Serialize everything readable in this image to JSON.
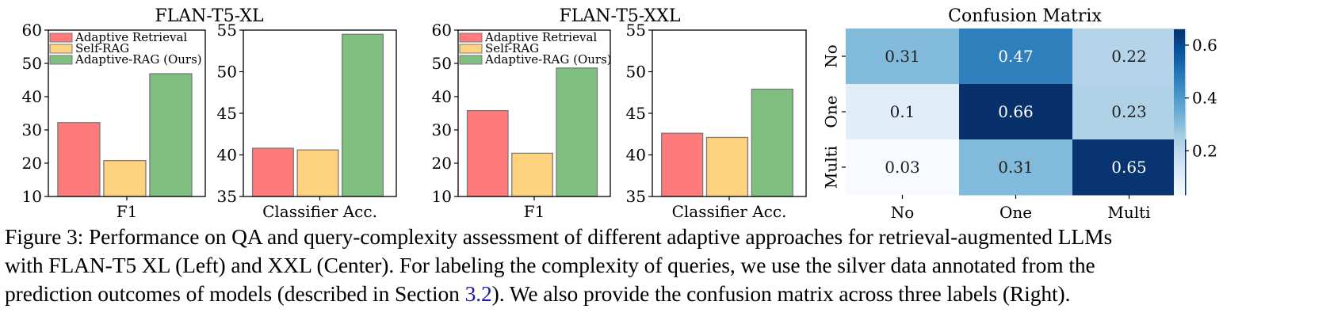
{
  "legend": [
    "Adaptive Retrieval",
    "Self-RAG",
    "Adaptive-RAG (Ours)"
  ],
  "colors": {
    "adaptive_retrieval": "#ff7b7b",
    "self_rag": "#ffd280",
    "adaptive_rag": "#7fbf7f",
    "bar_edge": "#7a7a7a"
  },
  "chart_data": [
    {
      "type": "bar",
      "title": "FLAN-T5-XL",
      "xlabel": "F1",
      "ylabel": "",
      "categories": [
        "F1"
      ],
      "ylim": [
        10,
        60
      ],
      "yticks": [
        10,
        20,
        30,
        40,
        50,
        60
      ],
      "series": [
        {
          "name": "Adaptive Retrieval",
          "values": [
            32.2
          ]
        },
        {
          "name": "Self-RAG",
          "values": [
            20.8
          ]
        },
        {
          "name": "Adaptive-RAG (Ours)",
          "values": [
            46.9
          ]
        }
      ]
    },
    {
      "type": "bar",
      "title": "FLAN-T5-XL",
      "xlabel": "Classifier Acc.",
      "ylabel": "",
      "categories": [
        "Classifier Acc."
      ],
      "ylim": [
        35,
        55
      ],
      "yticks": [
        35,
        40,
        45,
        50,
        55
      ],
      "series": [
        {
          "name": "Adaptive Retrieval",
          "values": [
            40.8
          ]
        },
        {
          "name": "Self-RAG",
          "values": [
            40.6
          ]
        },
        {
          "name": "Adaptive-RAG (Ours)",
          "values": [
            54.5
          ]
        }
      ]
    },
    {
      "type": "bar",
      "title": "FLAN-T5-XXL",
      "xlabel": "F1",
      "ylabel": "",
      "categories": [
        "F1"
      ],
      "ylim": [
        10,
        60
      ],
      "yticks": [
        10,
        20,
        30,
        40,
        50,
        60
      ],
      "series": [
        {
          "name": "Adaptive Retrieval",
          "values": [
            35.8
          ]
        },
        {
          "name": "Self-RAG",
          "values": [
            23.0
          ]
        },
        {
          "name": "Adaptive-RAG (Ours)",
          "values": [
            48.6
          ]
        }
      ]
    },
    {
      "type": "bar",
      "title": "FLAN-T5-XXL",
      "xlabel": "Classifier Acc.",
      "ylabel": "",
      "categories": [
        "Classifier Acc."
      ],
      "ylim": [
        35,
        55
      ],
      "yticks": [
        35,
        40,
        45,
        50,
        55
      ],
      "series": [
        {
          "name": "Adaptive Retrieval",
          "values": [
            42.6
          ]
        },
        {
          "name": "Self-RAG",
          "values": [
            42.1
          ]
        },
        {
          "name": "Adaptive-RAG (Ours)",
          "values": [
            47.9
          ]
        }
      ]
    },
    {
      "type": "heatmap",
      "title": "Confusion Matrix",
      "x_labels": [
        "No",
        "One",
        "Multi"
      ],
      "y_labels": [
        "No",
        "One",
        "Multi"
      ],
      "values": [
        [
          0.31,
          0.47,
          0.22
        ],
        [
          0.1,
          0.66,
          0.23
        ],
        [
          0.03,
          0.31,
          0.65
        ]
      ],
      "value_labels": [
        [
          "0.31",
          "0.47",
          "0.22"
        ],
        [
          "0.1",
          "0.66",
          "0.23"
        ],
        [
          "0.03",
          "0.31",
          "0.65"
        ]
      ],
      "colorbar": {
        "range": [
          0.03,
          0.66
        ],
        "ticks": [
          0.2,
          0.4,
          0.6
        ],
        "tick_labels": [
          "0.2",
          "0.4",
          "0.6"
        ],
        "colormap": [
          "#f7fbff",
          "#deebf7",
          "#c6dbef",
          "#9ecae1",
          "#6baed6",
          "#4292c6",
          "#2171b5",
          "#08519c",
          "#08306b"
        ]
      }
    }
  ],
  "caption": {
    "line1": "Figure 3: Performance on QA and query-complexity assessment of different adaptive approaches for retrieval-augmented LLMs",
    "line2": "with FLAN-T5 XL (Left) and XXL (Center). For labeling the complexity of queries, we use the silver data annotated from the",
    "line3_before": "prediction outcomes of models (described in Section ",
    "line3_ref": "3.2",
    "line3_after": "). We also provide the confusion matrix across three labels (Right)."
  }
}
